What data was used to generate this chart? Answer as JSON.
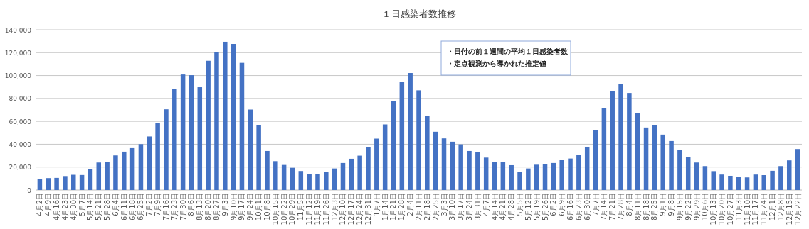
{
  "chart_data": {
    "type": "bar",
    "title": "１日感染者数推移",
    "annotations": [
      "・日付の前１週間の平均１日感染者数",
      "・定点観測から導かれた推定値"
    ],
    "categories": [
      "4月2日",
      "4月9日",
      "4月16日",
      "4月23日",
      "4月30日",
      "5月7日",
      "5月14日",
      "5月21日",
      "5月28日",
      "6月4日",
      "6月11日",
      "6月18日",
      "6月25日",
      "7月2日",
      "7月9日",
      "7月16日",
      "7月23日",
      "7月30日",
      "8月6日",
      "8月13日",
      "8月20日",
      "8月27日",
      "9月3日",
      "9月10日",
      "9月17日",
      "9月24日",
      "10月1日",
      "10月8日",
      "10月15日",
      "10月22日",
      "10月29日",
      "11月5日",
      "11月12日",
      "11月19日",
      "11月26日",
      "12月3日",
      "12月10日",
      "12月17日",
      "12月24日",
      "12月31日",
      "1月7日",
      "1月14日",
      "1月21日",
      "1月28日",
      "2月4日",
      "2月11日",
      "2月18日",
      "2月25日",
      "3月3日",
      "3月10日",
      "3月17日",
      "3月24日",
      "3月31日",
      "4月7日",
      "4月14日",
      "4月21日",
      "4月28日",
      "5月5日",
      "5月12日",
      "5月19日",
      "5月26日",
      "6月2日",
      "6月9日",
      "6月16日",
      "6月23日",
      "6月30日",
      "7月7日",
      "7月14日",
      "7月21日",
      "7月28日",
      "8月4日",
      "8月11日",
      "8月18日",
      "8月25日",
      "9月1日",
      "9月8日",
      "9月15日",
      "9月22日",
      "9月29日",
      "10月6日",
      "10月13日",
      "10月20日",
      "10月27日",
      "11月3日",
      "11月10日",
      "11月17日",
      "11月24日",
      "12月1日",
      "12月8日",
      "12月15日",
      "12月22日"
    ],
    "values": [
      9300,
      10400,
      10600,
      12200,
      13300,
      13100,
      18000,
      24000,
      24400,
      30200,
      33500,
      36600,
      40100,
      46800,
      58600,
      70500,
      88500,
      100900,
      100300,
      89800,
      112900,
      120600,
      129500,
      127600,
      111100,
      70300,
      56700,
      34100,
      25200,
      21900,
      19400,
      16600,
      14100,
      13700,
      16100,
      18800,
      23600,
      27300,
      30000,
      37600,
      44900,
      57300,
      77800,
      94700,
      102200,
      87100,
      64500,
      50900,
      45100,
      42200,
      39900,
      34100,
      33300,
      28300,
      24600,
      24200,
      21700,
      15700,
      18800,
      22100,
      22500,
      23600,
      26500,
      27500,
      30600,
      37800,
      52100,
      71400,
      86500,
      92500,
      84800,
      67200,
      54600,
      56700,
      48400,
      42800,
      34800,
      28800,
      24000,
      20900,
      16500,
      13500,
      12400,
      11600,
      11000,
      13500,
      13000,
      16800,
      20900,
      25900,
      35800
    ],
    "color": "#4472c4",
    "ylim": [
      0,
      140000
    ],
    "yticks": [
      {
        "value": 0,
        "label": "0"
      },
      {
        "value": 20000,
        "label": "20,000"
      },
      {
        "value": 40000,
        "label": "40,000"
      },
      {
        "value": 60000,
        "label": "60,000"
      },
      {
        "value": 80000,
        "label": "80,000"
      },
      {
        "value": 100000,
        "label": "100,000"
      },
      {
        "value": 120000,
        "label": "120,000"
      },
      {
        "value": 140000,
        "label": "140,000"
      }
    ],
    "grid": "y"
  }
}
